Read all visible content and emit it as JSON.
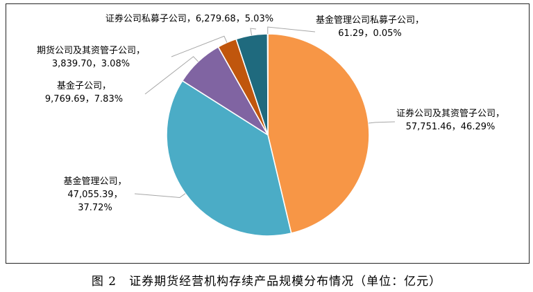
{
  "caption": "图 2　证券期货经营机构存续产品规模分布情况（单位：亿元）",
  "chart_data": {
    "type": "pie",
    "title": "",
    "unit": "亿元",
    "slices": [
      {
        "name": "证券公司及其资管子公司",
        "value": 57751.46,
        "percent": 46.29,
        "label_lines": [
          "证券公司及其资管子公司，",
          "57,751.46，46.29%"
        ],
        "color": "#F79646"
      },
      {
        "name": "基金管理公司",
        "value": 47055.39,
        "percent": 37.72,
        "label_lines": [
          "基金管理公司，",
          "47,055.39，",
          "37.72%"
        ],
        "color": "#4BACC6"
      },
      {
        "name": "基金子公司",
        "value": 9769.69,
        "percent": 7.83,
        "label_lines": [
          "基金子公司，",
          "9,769.69，7.83%"
        ],
        "color": "#8064A2"
      },
      {
        "name": "期货公司及其资管子公司",
        "value": 3839.7,
        "percent": 3.08,
        "label_lines": [
          "期货公司及其资管子公司，",
          "3,839.70，3.08%"
        ],
        "color": "#C0560D"
      },
      {
        "name": "证券公司私募子公司",
        "value": 6279.68,
        "percent": 5.03,
        "label_lines": [
          "证券公司私募子公司，6,279.68，5.03%"
        ],
        "color": "#1F6A7E"
      },
      {
        "name": "基金管理公司私募子公司",
        "value": 61.29,
        "percent": 0.05,
        "label_lines": [
          "基金管理公司私募子公司，",
          "61.29，0.05%"
        ],
        "color": "#2E75B6"
      }
    ]
  }
}
